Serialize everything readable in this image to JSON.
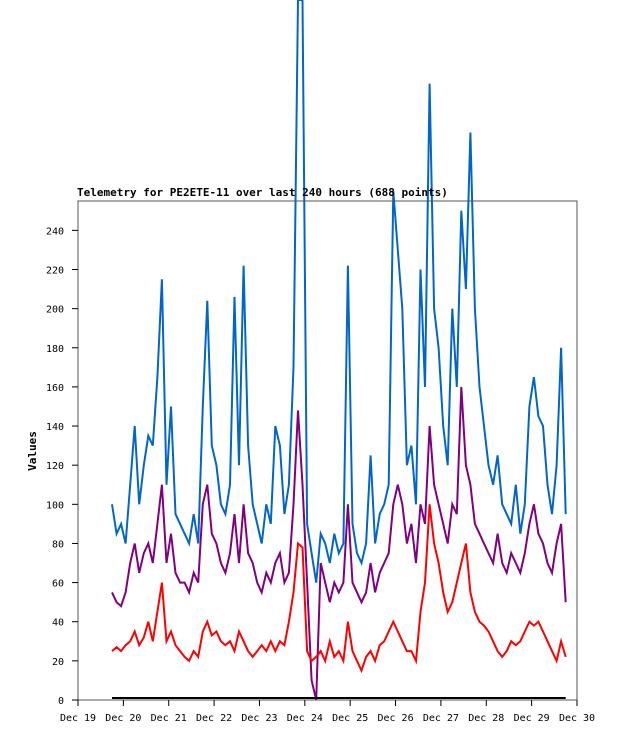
{
  "chart_data": {
    "type": "line",
    "title": "Telemetry for PE2ETE-11 over last 240 hours (688 points)",
    "xlabel": "",
    "ylabel": "Values",
    "xlim": [
      19,
      30
    ],
    "ylim": [
      0,
      255
    ],
    "x_range_of_data": [
      19.75,
      29.75
    ],
    "xticks": [
      19,
      20,
      21,
      22,
      23,
      24,
      25,
      26,
      27,
      28,
      29,
      30
    ],
    "xtick_labels": [
      "Dec 19",
      "Dec 20",
      "Dec 21",
      "Dec 22",
      "Dec 23",
      "Dec 24",
      "Dec 25",
      "Dec 26",
      "Dec 27",
      "Dec 28",
      "Dec 29",
      "Dec 30"
    ],
    "yticks": [
      0,
      20,
      40,
      60,
      80,
      100,
      120,
      140,
      160,
      180,
      200,
      220,
      240
    ],
    "yticks_labels": [
      "0",
      "20",
      "40",
      "60",
      "80",
      "100",
      "120",
      "140",
      "160",
      "180",
      "200",
      "220",
      "240"
    ],
    "grid": false,
    "series": [
      {
        "name": "blue",
        "color": "#0066cc",
        "values": [
          100,
          85,
          90,
          80,
          110,
          140,
          100,
          120,
          135,
          130,
          165,
          215,
          110,
          150,
          95,
          90,
          85,
          80,
          95,
          80,
          150,
          204,
          130,
          120,
          100,
          95,
          110,
          206,
          120,
          222,
          130,
          100,
          90,
          80,
          100,
          90,
          140,
          130,
          95,
          110,
          170,
          360,
          380,
          90,
          75,
          60,
          85,
          80,
          70,
          85,
          75,
          80,
          222,
          90,
          75,
          70,
          80,
          125,
          80,
          95,
          100,
          110,
          260,
          230,
          200,
          120,
          130,
          100,
          220,
          160,
          315,
          200,
          180,
          140,
          120,
          200,
          160,
          250,
          210,
          290,
          200,
          160,
          140,
          120,
          110,
          125,
          100,
          95,
          90,
          110,
          85,
          100,
          150,
          165,
          145,
          140,
          110,
          95,
          120,
          180,
          95
        ]
      },
      {
        "name": "purple",
        "color": "#800080",
        "values": [
          55,
          50,
          48,
          55,
          70,
          80,
          65,
          75,
          80,
          70,
          90,
          110,
          70,
          85,
          65,
          60,
          60,
          55,
          65,
          60,
          100,
          110,
          85,
          80,
          70,
          65,
          75,
          95,
          70,
          100,
          75,
          70,
          60,
          55,
          65,
          60,
          70,
          75,
          60,
          65,
          100,
          148,
          110,
          60,
          10,
          0,
          70,
          60,
          50,
          60,
          55,
          60,
          100,
          60,
          55,
          50,
          55,
          70,
          55,
          65,
          70,
          75,
          100,
          110,
          100,
          80,
          90,
          70,
          100,
          90,
          140,
          110,
          100,
          90,
          80,
          100,
          95,
          160,
          120,
          110,
          90,
          85,
          80,
          75,
          70,
          85,
          70,
          65,
          75,
          70,
          65,
          75,
          90,
          100,
          85,
          80,
          70,
          65,
          80,
          90,
          50
        ]
      },
      {
        "name": "red",
        "color": "#ff0000",
        "values": [
          25,
          27,
          25,
          28,
          30,
          35,
          28,
          32,
          40,
          30,
          45,
          60,
          30,
          35,
          28,
          25,
          22,
          20,
          25,
          22,
          35,
          40,
          33,
          35,
          30,
          28,
          30,
          25,
          35,
          30,
          25,
          22,
          25,
          28,
          25,
          30,
          25,
          30,
          28,
          40,
          55,
          80,
          78,
          25,
          20,
          22,
          25,
          20,
          30,
          22,
          25,
          20,
          40,
          25,
          20,
          15,
          22,
          25,
          20,
          28,
          30,
          35,
          40,
          35,
          30,
          25,
          25,
          20,
          45,
          60,
          100,
          80,
          70,
          55,
          45,
          50,
          60,
          70,
          80,
          55,
          45,
          40,
          38,
          35,
          30,
          25,
          22,
          25,
          30,
          28,
          30,
          35,
          40,
          38,
          40,
          35,
          30,
          25,
          20,
          30,
          22
        ]
      },
      {
        "name": "black",
        "color": "#000000",
        "values": [
          1,
          1
        ]
      }
    ]
  }
}
